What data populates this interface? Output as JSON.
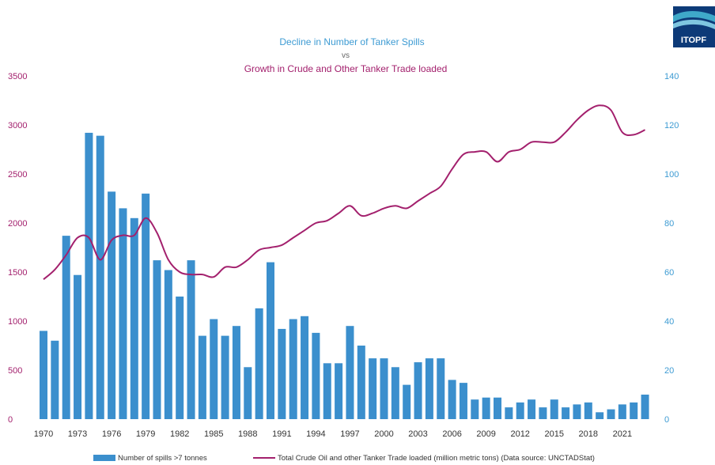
{
  "logo": {
    "text": "ITOPF"
  },
  "chart_data": {
    "type": "bar+line",
    "title_line1": "Decline in Number of Tanker Spills",
    "title_line2": "vs",
    "title_line3": "Growth in Crude and Other Tanker Trade loaded",
    "left_axis": {
      "ylim": [
        0,
        3500
      ],
      "ticks": [
        "0",
        "500",
        "1000",
        "1500",
        "2000",
        "2500",
        "3000",
        "3500"
      ],
      "color": "#a3206d"
    },
    "right_axis": {
      "ylim": [
        0,
        140
      ],
      "ticks": [
        "0",
        "20",
        "40",
        "60",
        "80",
        "100",
        "120",
        "140"
      ],
      "color": "#3d9bd3"
    },
    "x_tick_labels": [
      "1970",
      "1973",
      "1976",
      "1979",
      "1982",
      "1985",
      "1988",
      "1991",
      "1994",
      "1997",
      "2000",
      "2003",
      "2006",
      "2009",
      "2012",
      "2015",
      "2018",
      "2021"
    ],
    "years": [
      1970,
      1971,
      1972,
      1973,
      1974,
      1975,
      1976,
      1977,
      1978,
      1979,
      1980,
      1981,
      1982,
      1983,
      1984,
      1985,
      1986,
      1987,
      1988,
      1989,
      1990,
      1991,
      1992,
      1993,
      1994,
      1995,
      1996,
      1997,
      1998,
      1999,
      2000,
      2001,
      2002,
      2003,
      2004,
      2005,
      2006,
      2007,
      2008,
      2009,
      2010,
      2011,
      2012,
      2013,
      2014,
      2015,
      2016,
      2017,
      2018,
      2019,
      2020,
      2021,
      2022,
      2023
    ],
    "series": [
      {
        "name": "Number of spills >7 tonnes",
        "type": "bar",
        "axis": "left",
        "color": "#3b8fcd",
        "values": [
          900,
          800,
          1870,
          1470,
          2920,
          2890,
          2320,
          2150,
          2050,
          2300,
          1620,
          1520,
          1250,
          1620,
          850,
          1020,
          850,
          950,
          530,
          1130,
          1600,
          920,
          1020,
          1050,
          880,
          570,
          570,
          950,
          750,
          620,
          620,
          530,
          350,
          580,
          620,
          620,
          400,
          370,
          200,
          220,
          220,
          120,
          170,
          200,
          120,
          200,
          120,
          150,
          170,
          70,
          100,
          150,
          170,
          250
        ]
      },
      {
        "name": "Total Crude Oil and other Tanker Trade loaded (million metric tons) (Data source: UNCTADStat)",
        "type": "line",
        "axis": "right",
        "color": "#a3206d",
        "values": [
          57,
          61,
          67,
          74,
          74,
          65,
          73,
          75,
          75,
          82,
          76,
          65,
          60,
          59,
          59,
          58,
          62,
          62,
          65,
          69,
          70,
          71,
          74,
          77,
          80,
          81,
          84,
          87,
          83,
          84,
          86,
          87,
          86,
          89,
          92,
          95,
          102,
          108,
          109,
          109,
          105,
          109,
          110,
          113,
          113,
          113,
          117,
          122,
          126,
          128,
          126,
          117,
          116,
          118
        ]
      }
    ]
  }
}
